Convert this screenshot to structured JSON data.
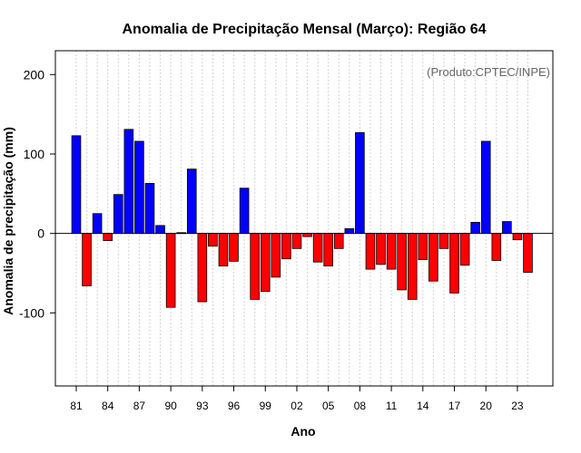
{
  "chart_data": {
    "type": "bar",
    "title": "Anomalia de Precipitação Mensal (Março): Região 64",
    "xlabel": "Ano",
    "ylabel": "Anomalia de precipitação (mm)",
    "credit": "(Produto:CPTEC/INPE)",
    "ylim": [
      -192,
      230
    ],
    "yticks": [
      -100,
      0,
      100,
      200
    ],
    "ytick_labels": [
      "-100",
      "0",
      "100",
      "200"
    ],
    "xtick_labels": [
      "81",
      "84",
      "87",
      "90",
      "93",
      "96",
      "99",
      "02",
      "05",
      "08",
      "11",
      "14",
      "17",
      "20",
      "23"
    ],
    "xtick_step": 3,
    "grid": true,
    "colors": {
      "positive": "#0000ff",
      "negative": "#ff0000",
      "grid": "#d3d3d3",
      "frame": "#000000"
    },
    "categories": [
      "1981",
      "1982",
      "1983",
      "1984",
      "1985",
      "1986",
      "1987",
      "1988",
      "1989",
      "1990",
      "1991",
      "1992",
      "1993",
      "1994",
      "1995",
      "1996",
      "1997",
      "1998",
      "1999",
      "2000",
      "2001",
      "2002",
      "2003",
      "2004",
      "2005",
      "2006",
      "2007",
      "2008",
      "2009",
      "2010",
      "2011",
      "2012",
      "2013",
      "2014",
      "2015",
      "2016",
      "2017",
      "2018",
      "2019",
      "2020",
      "2021",
      "2022",
      "2023",
      "2024"
    ],
    "values": [
      123,
      -66,
      25,
      -9,
      49,
      131,
      116,
      63,
      10,
      -93,
      1,
      81,
      -86,
      -16,
      -41,
      -35,
      57,
      -83,
      -73,
      -55,
      -32,
      -19,
      -4,
      -36,
      -41,
      -19,
      6,
      127,
      -45,
      -39,
      -45,
      -71,
      -83,
      -33,
      -60,
      -19,
      -75,
      -40,
      14,
      116,
      -34,
      15,
      -8,
      -49
    ]
  }
}
